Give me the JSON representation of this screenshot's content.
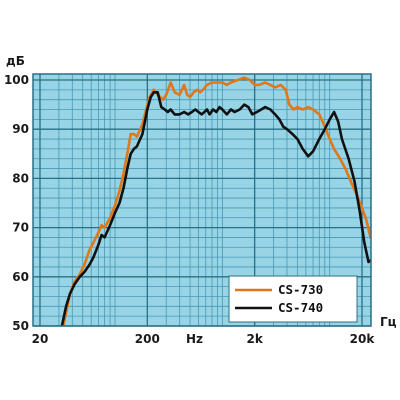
{
  "chart_data": {
    "type": "line",
    "ylabel": "дБ",
    "xlabel": "Гц",
    "x_scale": "log",
    "xlim": [
      14,
      25000
    ],
    "ylim": [
      50,
      102
    ],
    "y_ticks": [
      100,
      90,
      80,
      70,
      60,
      50
    ],
    "y_tick_labels": [
      "100",
      "90",
      "80",
      "70",
      "60",
      "50"
    ],
    "x_ticks": [
      {
        "value": 20,
        "label": "20"
      },
      {
        "value": 200,
        "label": "200"
      },
      {
        "value": 550,
        "label": "Hz"
      },
      {
        "value": 2000,
        "label": "2k"
      },
      {
        "value": 20000,
        "label": "20k"
      }
    ],
    "grid": true,
    "legend_position": "bottom-right",
    "series": [
      {
        "name": "CS-730",
        "color": "#e07818",
        "points": [
          [
            33,
            50
          ],
          [
            36,
            54
          ],
          [
            38,
            56.5
          ],
          [
            42,
            59
          ],
          [
            47,
            60.5
          ],
          [
            52,
            62.5
          ],
          [
            58,
            65.5
          ],
          [
            63,
            67
          ],
          [
            70,
            69
          ],
          [
            75,
            70.5
          ],
          [
            80,
            70
          ],
          [
            90,
            72
          ],
          [
            100,
            74.5
          ],
          [
            110,
            77.5
          ],
          [
            120,
            81
          ],
          [
            130,
            85
          ],
          [
            140,
            89
          ],
          [
            150,
            89
          ],
          [
            160,
            88.5
          ],
          [
            180,
            91
          ],
          [
            195,
            94
          ],
          [
            210,
            96.5
          ],
          [
            230,
            98
          ],
          [
            250,
            97
          ],
          [
            280,
            96
          ],
          [
            300,
            97
          ],
          [
            330,
            99.5
          ],
          [
            360,
            97.5
          ],
          [
            400,
            97
          ],
          [
            440,
            99
          ],
          [
            470,
            97
          ],
          [
            500,
            96.5
          ],
          [
            540,
            97.5
          ],
          [
            580,
            98
          ],
          [
            620,
            97.5
          ],
          [
            660,
            98
          ],
          [
            720,
            99
          ],
          [
            800,
            99.5
          ],
          [
            900,
            99.5
          ],
          [
            1000,
            99.5
          ],
          [
            1100,
            99
          ],
          [
            1200,
            99.5
          ],
          [
            1400,
            100
          ],
          [
            1600,
            100.5
          ],
          [
            1800,
            100
          ],
          [
            2000,
            99
          ],
          [
            2200,
            99
          ],
          [
            2500,
            99.5
          ],
          [
            2800,
            99
          ],
          [
            3100,
            98.5
          ],
          [
            3500,
            99
          ],
          [
            3900,
            98
          ],
          [
            4200,
            95
          ],
          [
            4600,
            94
          ],
          [
            5000,
            94.5
          ],
          [
            5600,
            94
          ],
          [
            6300,
            94.5
          ],
          [
            7000,
            94
          ],
          [
            8000,
            93
          ],
          [
            9000,
            90.5
          ],
          [
            10000,
            88
          ],
          [
            11000,
            86
          ],
          [
            12500,
            84
          ],
          [
            14000,
            82
          ],
          [
            16000,
            79
          ],
          [
            18000,
            76.5
          ],
          [
            20000,
            74
          ],
          [
            22000,
            71.5
          ],
          [
            24000,
            68
          ]
        ]
      },
      {
        "name": "CS-740",
        "color": "#111111",
        "points": [
          [
            32,
            50
          ],
          [
            35,
            54
          ],
          [
            38,
            56.5
          ],
          [
            42,
            58.5
          ],
          [
            47,
            60
          ],
          [
            52,
            61
          ],
          [
            58,
            62.5
          ],
          [
            63,
            64
          ],
          [
            70,
            66.5
          ],
          [
            75,
            68.5
          ],
          [
            80,
            68
          ],
          [
            90,
            70.5
          ],
          [
            100,
            73
          ],
          [
            110,
            75
          ],
          [
            120,
            78
          ],
          [
            130,
            82
          ],
          [
            140,
            85
          ],
          [
            150,
            86
          ],
          [
            160,
            86.5
          ],
          [
            180,
            89
          ],
          [
            200,
            94
          ],
          [
            215,
            96.5
          ],
          [
            230,
            97.5
          ],
          [
            250,
            97.5
          ],
          [
            270,
            94.5
          ],
          [
            290,
            94
          ],
          [
            310,
            93.5
          ],
          [
            330,
            94
          ],
          [
            360,
            93
          ],
          [
            400,
            93
          ],
          [
            440,
            93.5
          ],
          [
            480,
            93
          ],
          [
            520,
            93.5
          ],
          [
            560,
            94
          ],
          [
            600,
            93.5
          ],
          [
            640,
            93
          ],
          [
            680,
            93.5
          ],
          [
            720,
            94
          ],
          [
            760,
            93
          ],
          [
            820,
            94
          ],
          [
            880,
            93.5
          ],
          [
            940,
            94.5
          ],
          [
            1000,
            94
          ],
          [
            1100,
            93
          ],
          [
            1200,
            94
          ],
          [
            1300,
            93.5
          ],
          [
            1450,
            94
          ],
          [
            1600,
            95
          ],
          [
            1750,
            94.5
          ],
          [
            1900,
            93
          ],
          [
            2100,
            93.5
          ],
          [
            2300,
            94
          ],
          [
            2500,
            94.5
          ],
          [
            2800,
            94
          ],
          [
            3100,
            93
          ],
          [
            3400,
            92
          ],
          [
            3700,
            90.5
          ],
          [
            4000,
            90
          ],
          [
            4500,
            89
          ],
          [
            5000,
            88
          ],
          [
            5600,
            86
          ],
          [
            6300,
            84.5
          ],
          [
            7000,
            85.5
          ],
          [
            8000,
            88
          ],
          [
            9000,
            90
          ],
          [
            10000,
            92
          ],
          [
            11000,
            93.5
          ],
          [
            12000,
            91.5
          ],
          [
            13000,
            88
          ],
          [
            15000,
            84
          ],
          [
            17000,
            79.5
          ],
          [
            19000,
            73.5
          ],
          [
            21000,
            67
          ],
          [
            23000,
            63
          ],
          [
            24500,
            63.5
          ]
        ]
      }
    ]
  }
}
